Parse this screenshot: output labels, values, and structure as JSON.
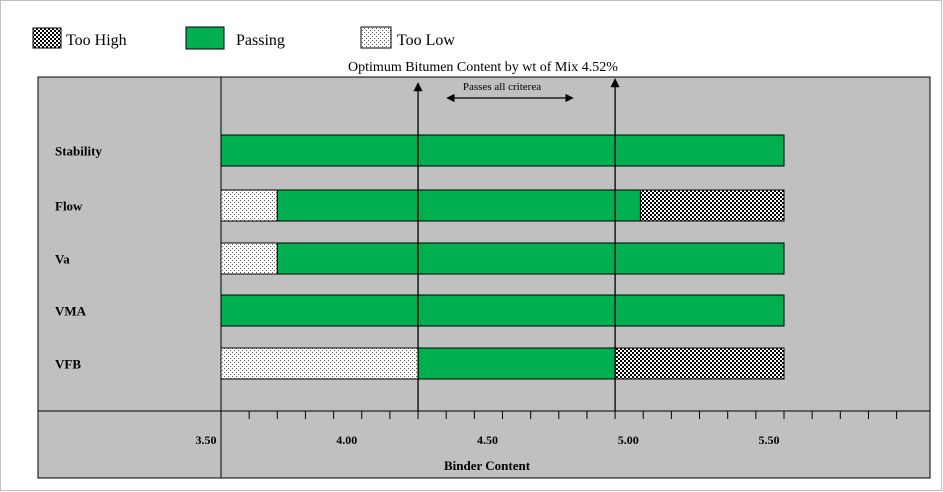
{
  "chart_data": {
    "type": "bar",
    "subtype": "stacked-horizontal-range",
    "title": "Optimum Bitumen Content  by wt of Mix 4.52%",
    "xlabel": "Binder Content",
    "ylabel": "",
    "xlim": [
      3.5,
      5.95
    ],
    "x_ticks": [
      "3.50",
      "4.00",
      "4.50",
      "5.00",
      "5.50"
    ],
    "x_tick_values": [
      3.5,
      4.0,
      4.5,
      5.0,
      5.5
    ],
    "categories": [
      "Stability",
      "Flow",
      "Va",
      "VMA",
      "VFB"
    ],
    "legend": {
      "placement": "top-left",
      "entries": [
        {
          "key": "too_high",
          "label": "Too High"
        },
        {
          "key": "passing",
          "label": "Passing"
        },
        {
          "key": "too_low",
          "label": "Too Low"
        }
      ]
    },
    "segments": [
      {
        "category": "Stability",
        "status": "passing",
        "start": 3.5,
        "end": 5.5
      },
      {
        "category": "Flow",
        "status": "too_low",
        "start": 3.5,
        "end": 3.7
      },
      {
        "category": "Flow",
        "status": "passing",
        "start": 3.7,
        "end": 4.99
      },
      {
        "category": "Flow",
        "status": "too_high",
        "start": 4.99,
        "end": 5.5
      },
      {
        "category": "Va",
        "status": "too_low",
        "start": 3.5,
        "end": 3.7
      },
      {
        "category": "Va",
        "status": "passing",
        "start": 3.7,
        "end": 5.5
      },
      {
        "category": "VMA",
        "status": "passing",
        "start": 3.5,
        "end": 5.5
      },
      {
        "category": "VFB",
        "status": "too_low",
        "start": 3.5,
        "end": 4.2
      },
      {
        "category": "VFB",
        "status": "passing",
        "start": 4.2,
        "end": 4.9
      },
      {
        "category": "VFB",
        "status": "too_high",
        "start": 4.9,
        "end": 5.5
      }
    ],
    "criteria_band": {
      "lower": 4.2,
      "upper": 4.9,
      "label": "Passes all criterea"
    },
    "grid": false,
    "colors": {
      "passing": "#00b050",
      "too_high": "#000000",
      "too_low": "#ffffff",
      "plot_background": "#c0c0c0"
    }
  }
}
